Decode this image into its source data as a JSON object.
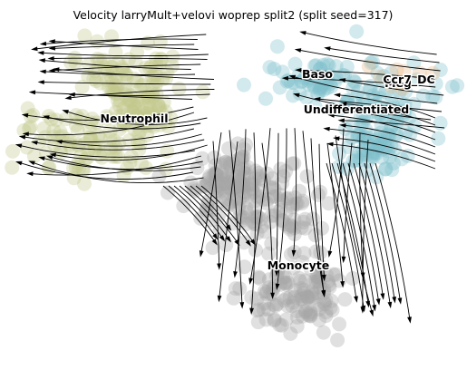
{
  "chart_data": {
    "type": "scatter",
    "subtype": "velocity-stream-embedding",
    "title": "Velocity larryMult+velovi woprep split2 (split seed=317)",
    "xlabel": "",
    "ylabel": "",
    "axes_visible": false,
    "grid": false,
    "legend": "on data",
    "clusters": [
      {
        "name": "Neutrophil",
        "color": "#c4c98c"
      },
      {
        "name": "Monocyte",
        "color": "#a6a6a6"
      },
      {
        "name": "Baso",
        "color": "#7fbfca"
      },
      {
        "name": "Undifferentiated",
        "color": "#7fbfca"
      },
      {
        "name": "Meg",
        "color": "#7fbfca"
      },
      {
        "name": "Ccr7_DC",
        "color": "#e9b98c"
      }
    ],
    "stream_color": "#000000"
  }
}
